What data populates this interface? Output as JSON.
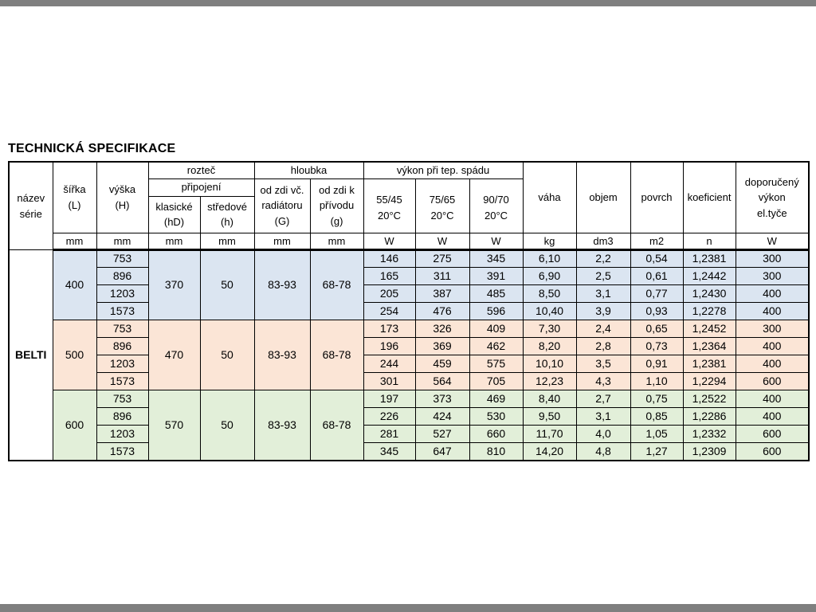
{
  "page": {
    "title": "TECHNICKÁ SPECIFIKACE"
  },
  "table": {
    "header": {
      "serie": "název\nsérie",
      "sirka": "šířka\n(L)",
      "vyska": "výška\n(H)",
      "roztec": "rozteč",
      "pripojeni": "připojení",
      "klasicke": "klasické\n(hD)",
      "stredove": "středové\n(h)",
      "hloubka": "hloubka",
      "od_zdi_vc": "od zdi vč.\nradiátoru\n(G)",
      "od_zdi_k": "od zdi k\npřívodu\n(g)",
      "vykon": "výkon při tep. spádu",
      "t5545": "55/45\n20°C",
      "t7565": "75/65\n20°C",
      "t9070": "90/70\n20°C",
      "vaha": "váha",
      "objem": "objem",
      "povrch": "povrch",
      "koeficient": "koeficient",
      "doporuceny": "doporučený\nvýkon\nel.tyče"
    },
    "units": [
      "mm",
      "mm",
      "mm",
      "mm",
      "mm",
      "mm",
      "W",
      "W",
      "W",
      "kg",
      "dm3",
      "m2",
      "n",
      "W"
    ],
    "series_name": "BELTI",
    "groups": [
      {
        "sirka": "400",
        "bg": "#dbe5f1",
        "klasicke": "370",
        "stredove": "50",
        "g1": "83-93",
        "g2": "68-78",
        "rows": [
          {
            "vyska": "753",
            "w1": "146",
            "w2": "275",
            "w3": "345",
            "vaha": "6,10",
            "objem": "2,2",
            "povrch": "0,54",
            "koef": "1,2381",
            "dop": "300"
          },
          {
            "vyska": "896",
            "w1": "165",
            "w2": "311",
            "w3": "391",
            "vaha": "6,90",
            "objem": "2,5",
            "povrch": "0,61",
            "koef": "1,2442",
            "dop": "300"
          },
          {
            "vyska": "1203",
            "w1": "205",
            "w2": "387",
            "w3": "485",
            "vaha": "8,50",
            "objem": "3,1",
            "povrch": "0,77",
            "koef": "1,2430",
            "dop": "400"
          },
          {
            "vyska": "1573",
            "w1": "254",
            "w2": "476",
            "w3": "596",
            "vaha": "10,40",
            "objem": "3,9",
            "povrch": "0,93",
            "koef": "1,2278",
            "dop": "400"
          }
        ]
      },
      {
        "sirka": "500",
        "bg": "#fbe5d6",
        "klasicke": "470",
        "stredove": "50",
        "g1": "83-93",
        "g2": "68-78",
        "rows": [
          {
            "vyska": "753",
            "w1": "173",
            "w2": "326",
            "w3": "409",
            "vaha": "7,30",
            "objem": "2,4",
            "povrch": "0,65",
            "koef": "1,2452",
            "dop": "300"
          },
          {
            "vyska": "896",
            "w1": "196",
            "w2": "369",
            "w3": "462",
            "vaha": "8,20",
            "objem": "2,8",
            "povrch": "0,73",
            "koef": "1,2364",
            "dop": "400"
          },
          {
            "vyska": "1203",
            "w1": "244",
            "w2": "459",
            "w3": "575",
            "vaha": "10,10",
            "objem": "3,5",
            "povrch": "0,91",
            "koef": "1,2381",
            "dop": "400"
          },
          {
            "vyska": "1573",
            "w1": "301",
            "w2": "564",
            "w3": "705",
            "vaha": "12,23",
            "objem": "4,3",
            "povrch": "1,10",
            "koef": "1,2294",
            "dop": "600"
          }
        ]
      },
      {
        "sirka": "600",
        "bg": "#e2efd9",
        "klasicke": "570",
        "stredove": "50",
        "g1": "83-93",
        "g2": "68-78",
        "rows": [
          {
            "vyska": "753",
            "w1": "197",
            "w2": "373",
            "w3": "469",
            "vaha": "8,40",
            "objem": "2,7",
            "povrch": "0,75",
            "koef": "1,2522",
            "dop": "400"
          },
          {
            "vyska": "896",
            "w1": "226",
            "w2": "424",
            "w3": "530",
            "vaha": "9,50",
            "objem": "3,1",
            "povrch": "0,85",
            "koef": "1,2286",
            "dop": "400"
          },
          {
            "vyska": "1203",
            "w1": "281",
            "w2": "527",
            "w3": "660",
            "vaha": "11,70",
            "objem": "4,0",
            "povrch": "1,05",
            "koef": "1,2332",
            "dop": "600"
          },
          {
            "vyska": "1573",
            "w1": "345",
            "w2": "647",
            "w3": "810",
            "vaha": "14,20",
            "objem": "4,8",
            "povrch": "1,27",
            "koef": "1,2309",
            "dop": "600"
          }
        ]
      }
    ]
  }
}
